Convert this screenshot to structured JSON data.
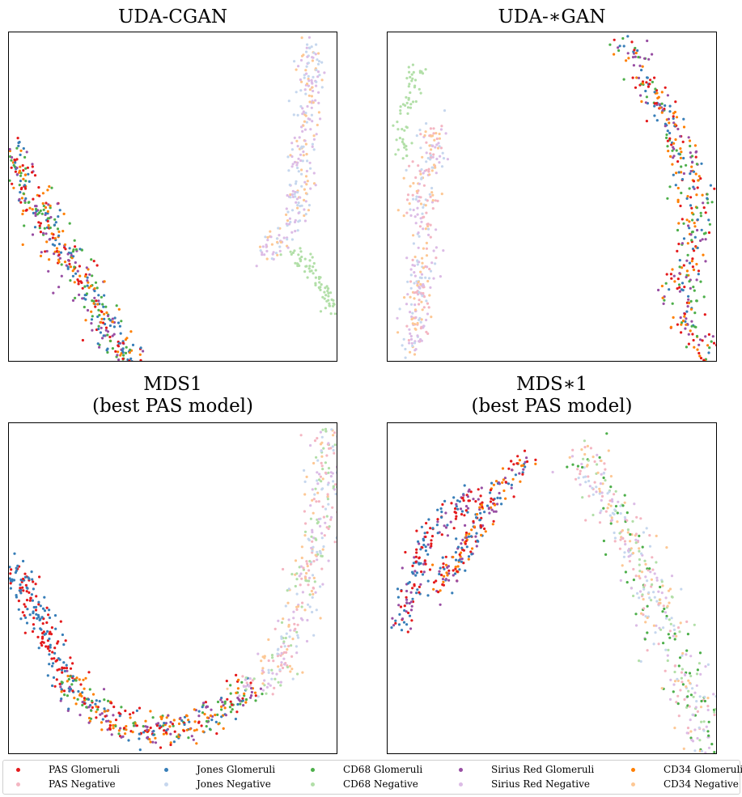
{
  "chart_data": [
    {
      "type": "scatter",
      "title": "UDA-CGAN",
      "clusters": [
        {
          "classes": [
            "PAS Glomeruli",
            "Jones Glomeruli",
            "CD68 Glomeruli",
            "Sirius Red Glomeruli",
            "CD34 Glomeruli"
          ],
          "path": [
            [
              1,
              140
            ],
            [
              15,
              175
            ],
            [
              40,
              230
            ],
            [
              80,
              290
            ],
            [
              110,
              345
            ],
            [
              140,
              390
            ],
            [
              155,
              420
            ]
          ],
          "spread": 20,
          "count": 420
        },
        {
          "classes": [
            "Jones Negative",
            "CD34 Negative",
            "Sirius Red Negative"
          ],
          "path": [
            [
              372,
              10
            ],
            [
              372,
              70
            ],
            [
              365,
              140
            ],
            [
              358,
              210
            ],
            [
              345,
              245
            ],
            [
              325,
              268
            ],
            [
              310,
              280
            ]
          ],
          "spread": 14,
          "count": 260
        },
        {
          "classes": [
            "CD68 Negative"
          ],
          "path": [
            [
              350,
              268
            ],
            [
              375,
              295
            ],
            [
              390,
              318
            ],
            [
              400,
              345
            ]
          ],
          "spread": 8,
          "count": 70
        }
      ]
    },
    {
      "type": "scatter",
      "title": "UDA-∗GAN",
      "clusters": [
        {
          "classes": [
            "CD68 Negative"
          ],
          "path": [
            [
              35,
              42
            ],
            [
              28,
              80
            ],
            [
              12,
              120
            ],
            [
              22,
              150
            ]
          ],
          "spread": 10,
          "count": 60
        },
        {
          "classes": [
            "CD34 Negative",
            "Sirius Red Negative",
            "PAS Negative",
            "Jones Negative"
          ],
          "path": [
            [
              60,
              110
            ],
            [
              50,
              160
            ],
            [
              40,
              210
            ],
            [
              45,
              270
            ],
            [
              40,
              320
            ],
            [
              32,
              385
            ]
          ],
          "spread": 15,
          "count": 300
        },
        {
          "classes": [
            "PAS Glomeruli",
            "Jones Glomeruli",
            "CD68 Glomeruli",
            "Sirius Red Glomeruli",
            "CD34 Glomeruli"
          ],
          "path": [
            [
              295,
              10
            ],
            [
              320,
              60
            ],
            [
              350,
              110
            ],
            [
              365,
              160
            ],
            [
              385,
              220
            ],
            [
              372,
              280
            ],
            [
              362,
              330
            ],
            [
              392,
              400
            ]
          ],
          "spread": 18,
          "count": 380
        }
      ]
    },
    {
      "type": "scatter",
      "title": "MDS1\n(best PAS model)",
      "clusters": [
        {
          "classes": [
            "PAS Glomeruli",
            "Jones Glomeruli"
          ],
          "path": [
            [
              5,
              165
            ],
            [
              25,
              220
            ],
            [
              50,
              270
            ],
            [
              70,
              320
            ]
          ],
          "spread": 16,
          "count": 180
        },
        {
          "classes": [
            "CD68 Glomeruli",
            "CD34 Glomeruli",
            "PAS Glomeruli",
            "Sirius Red Glomeruli",
            "Jones Glomeruli"
          ],
          "path": [
            [
              70,
              320
            ],
            [
              120,
              360
            ],
            [
              170,
              385
            ],
            [
              220,
              375
            ],
            [
              265,
              355
            ],
            [
              300,
              325
            ]
          ],
          "spread": 18,
          "count": 340
        },
        {
          "classes": [
            "Sirius Red Negative",
            "CD34 Negative",
            "CD68 Negative",
            "Jones Negative",
            "PAS Negative"
          ],
          "path": [
            [
              300,
              325
            ],
            [
              340,
              290
            ],
            [
              362,
              220
            ],
            [
              380,
              150
            ],
            [
              392,
              90
            ],
            [
              395,
              8
            ]
          ],
          "spread": 20,
          "count": 360
        }
      ]
    },
    {
      "type": "scatter",
      "title": "MDS∗1\n(best PAS model)",
      "clusters": [
        {
          "classes": [
            "PAS Glomeruli",
            "Jones Glomeruli",
            "Sirius Red Glomeruli"
          ],
          "path": [
            [
              8,
              265
            ],
            [
              25,
              220
            ],
            [
              40,
              170
            ],
            [
              65,
              120
            ],
            [
              105,
              85
            ]
          ],
          "spread": 14,
          "count": 170
        },
        {
          "classes": [
            "CD34 Glomeruli",
            "PAS Glomeruli",
            "Jones Glomeruli",
            "Sirius Red Glomeruli"
          ],
          "path": [
            [
              60,
              215
            ],
            [
              90,
              160
            ],
            [
              120,
              110
            ],
            [
              150,
              65
            ],
            [
              170,
              40
            ]
          ],
          "spread": 14,
          "count": 200
        },
        {
          "classes": [
            "CD68 Glomeruli",
            "CD34 Negative",
            "Sirius Red Negative",
            "CD68 Negative",
            "Jones Negative",
            "PAS Negative"
          ],
          "path": [
            [
              240,
              35
            ],
            [
              280,
              110
            ],
            [
              320,
              190
            ],
            [
              345,
              260
            ],
            [
              375,
              330
            ],
            [
              400,
              410
            ]
          ],
          "spread": 24,
          "count": 420
        }
      ]
    }
  ],
  "legend": [
    {
      "label": "PAS Glomeruli",
      "color": "#e41a1c"
    },
    {
      "label": "Jones Glomeruli",
      "color": "#377eb8"
    },
    {
      "label": "CD68 Glomeruli",
      "color": "#4daf4a"
    },
    {
      "label": "Sirius Red Glomeruli",
      "color": "#984ea3"
    },
    {
      "label": "CD34 Glomeruli",
      "color": "#ff7f00"
    },
    {
      "label": "PAS Negative",
      "color": "#f4b6c2"
    },
    {
      "label": "Jones Negative",
      "color": "#c6d7ee"
    },
    {
      "label": "CD68 Negative",
      "color": "#b2dfa8"
    },
    {
      "label": "Sirius Red Negative",
      "color": "#dcbce6"
    },
    {
      "label": "CD34 Negative",
      "color": "#fdc895"
    }
  ]
}
